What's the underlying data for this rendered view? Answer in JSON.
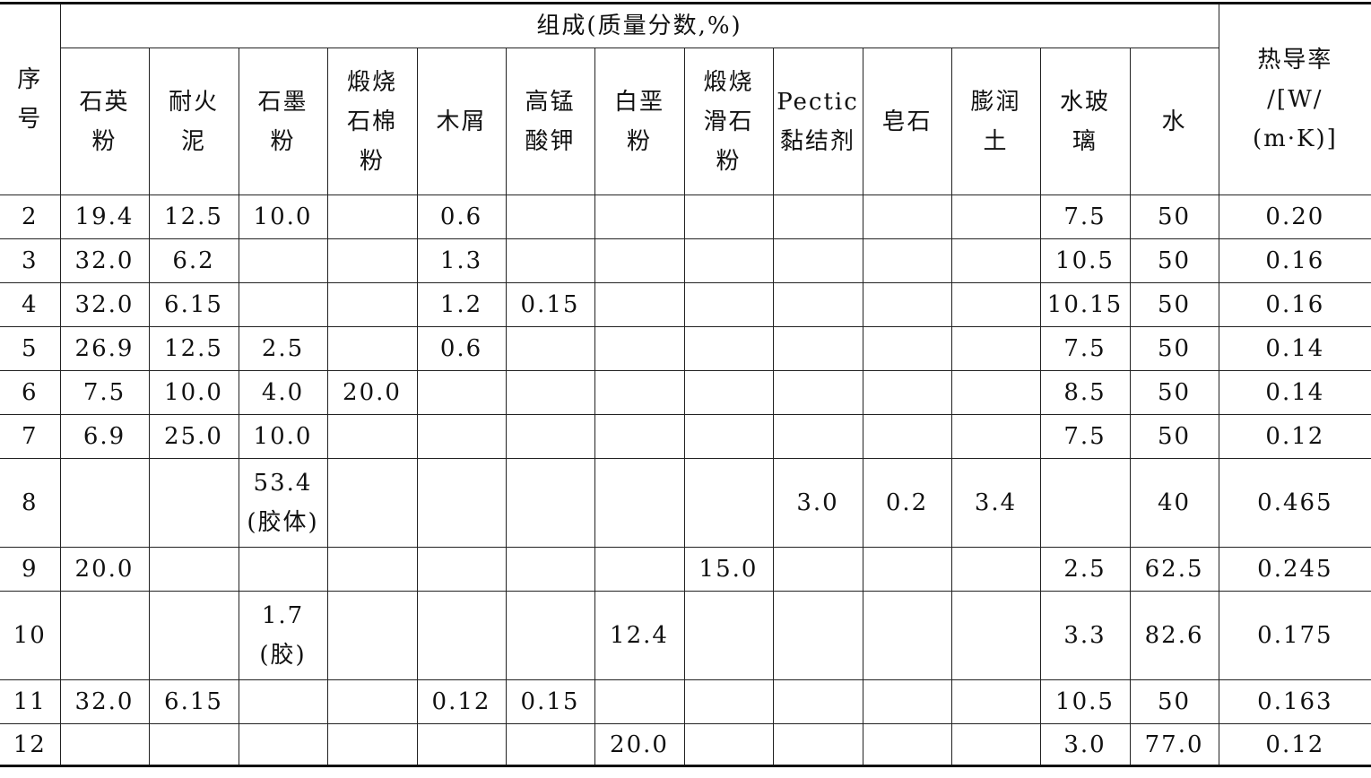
{
  "table": {
    "index_header": "序\n号",
    "group_header": "组成(质量分数,%)",
    "conductivity_header": "热导率\n/[W/\n(m·K)]",
    "columns": [
      "石英\n粉",
      "耐火\n泥",
      "石墨\n粉",
      "煅烧\n石棉\n粉",
      "木屑",
      "高锰\n酸钾",
      "白垩\n粉",
      "煅烧\n滑石\n粉",
      "Pectic\n黏结剂",
      "皂石",
      "膨润\n土",
      "水玻\n璃",
      "水"
    ],
    "rows": [
      [
        "2",
        "19.4",
        "12.5",
        "10.0",
        "",
        "0.6",
        "",
        "",
        "",
        "",
        "",
        "",
        "7.5",
        "50",
        "0.20"
      ],
      [
        "3",
        "32.0",
        "6.2",
        "",
        "",
        "1.3",
        "",
        "",
        "",
        "",
        "",
        "",
        "10.5",
        "50",
        "0.16"
      ],
      [
        "4",
        "32.0",
        "6.15",
        "",
        "",
        "1.2",
        "0.15",
        "",
        "",
        "",
        "",
        "",
        "10.15",
        "50",
        "0.16"
      ],
      [
        "5",
        "26.9",
        "12.5",
        "2.5",
        "",
        "0.6",
        "",
        "",
        "",
        "",
        "",
        "",
        "7.5",
        "50",
        "0.14"
      ],
      [
        "6",
        "7.5",
        "10.0",
        "4.0",
        "20.0",
        "",
        "",
        "",
        "",
        "",
        "",
        "",
        "8.5",
        "50",
        "0.14"
      ],
      [
        "7",
        "6.9",
        "25.0",
        "10.0",
        "",
        "",
        "",
        "",
        "",
        "",
        "",
        "",
        "7.5",
        "50",
        "0.12"
      ],
      [
        "8",
        "",
        "",
        "53.4\n(胶体)",
        "",
        "",
        "",
        "",
        "",
        "3.0",
        "0.2",
        "3.4",
        "",
        "40",
        "0.465"
      ],
      [
        "9",
        "20.0",
        "",
        "",
        "",
        "",
        "",
        "",
        "15.0",
        "",
        "",
        "",
        "2.5",
        "62.5",
        "0.245"
      ],
      [
        "10",
        "",
        "",
        "1.7\n(胶)",
        "",
        "",
        "",
        "12.4",
        "",
        "",
        "",
        "",
        "3.3",
        "82.6",
        "0.175"
      ],
      [
        "11",
        "32.0",
        "6.15",
        "",
        "",
        "0.12",
        "0.15",
        "",
        "",
        "",
        "",
        "",
        "10.5",
        "50",
        "0.163"
      ],
      [
        "12",
        "",
        "",
        "",
        "",
        "",
        "",
        "20.0",
        "",
        "",
        "",
        "",
        "3.0",
        "77.0",
        "0.12"
      ]
    ]
  }
}
